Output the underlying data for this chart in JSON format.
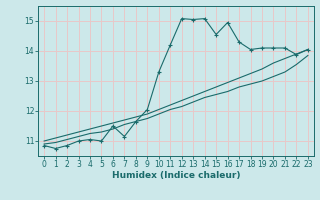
{
  "xlabel": "Humidex (Indice chaleur)",
  "background_color": "#cce8ea",
  "grid_color": "#e8c8c8",
  "line_color": "#1a6b6b",
  "xlim": [
    -0.5,
    23.5
  ],
  "ylim": [
    10.5,
    15.5
  ],
  "yticks": [
    11,
    12,
    13,
    14,
    15
  ],
  "xticks": [
    0,
    1,
    2,
    3,
    4,
    5,
    6,
    7,
    8,
    9,
    10,
    11,
    12,
    13,
    14,
    15,
    16,
    17,
    18,
    19,
    20,
    21,
    22,
    23
  ],
  "line1_x": [
    0,
    1,
    2,
    3,
    4,
    5,
    6,
    7,
    8,
    9,
    10,
    11,
    12,
    13,
    14,
    15,
    16,
    17,
    18,
    19,
    20,
    21,
    22,
    23
  ],
  "line1_y": [
    10.85,
    10.75,
    10.85,
    11.0,
    11.05,
    11.0,
    11.5,
    11.15,
    11.65,
    12.05,
    13.3,
    14.2,
    15.08,
    15.05,
    15.08,
    14.55,
    14.95,
    14.3,
    14.05,
    14.1,
    14.1,
    14.1,
    13.88,
    14.05
  ],
  "line2_x": [
    0,
    1,
    2,
    3,
    4,
    5,
    6,
    7,
    8,
    9,
    10,
    11,
    12,
    13,
    14,
    15,
    16,
    17,
    18,
    19,
    20,
    21,
    22,
    23
  ],
  "line2_y": [
    10.9,
    10.95,
    11.05,
    11.15,
    11.25,
    11.3,
    11.4,
    11.55,
    11.65,
    11.75,
    11.9,
    12.05,
    12.15,
    12.3,
    12.45,
    12.55,
    12.65,
    12.8,
    12.9,
    13.0,
    13.15,
    13.3,
    13.55,
    13.85
  ],
  "line3_x": [
    0,
    1,
    2,
    3,
    4,
    5,
    6,
    7,
    8,
    9,
    10,
    11,
    12,
    13,
    14,
    15,
    16,
    17,
    18,
    19,
    20,
    21,
    22,
    23
  ],
  "line3_y": [
    11.0,
    11.1,
    11.2,
    11.3,
    11.4,
    11.5,
    11.6,
    11.7,
    11.8,
    11.9,
    12.05,
    12.2,
    12.35,
    12.5,
    12.65,
    12.8,
    12.95,
    13.1,
    13.25,
    13.4,
    13.6,
    13.75,
    13.9,
    14.05
  ]
}
